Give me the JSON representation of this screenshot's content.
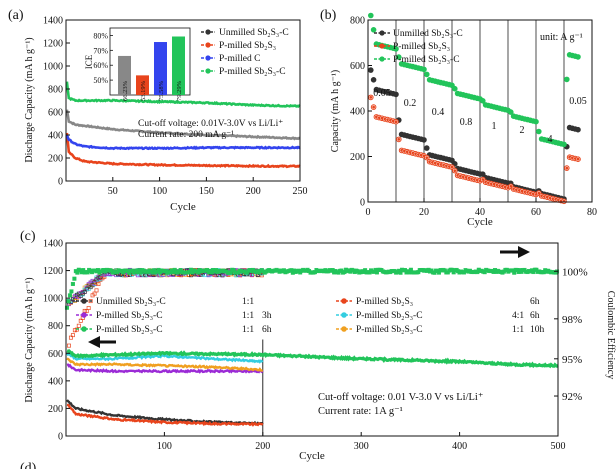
{
  "figure": {
    "panel_labels": [
      "(a)",
      "(b)",
      "(c)",
      "(d)"
    ],
    "panel_b_unit": "unit: A g⁻¹",
    "colors": {
      "unmilled": "#333333",
      "pmilled": "#e8441c",
      "pmilled_c": "#3344ee",
      "pmilled_sbc": "#22c45a",
      "purple": "#9b2bd6",
      "cyan": "#33cde0",
      "orange": "#f0a020",
      "gray": "#888888"
    }
  },
  "chart_data": [
    {
      "id": "a",
      "type": "line",
      "title": "",
      "xlabel": "Cycle",
      "ylabel": "Discharge Capacity (mA h g⁻¹)",
      "xlim": [
        0,
        250
      ],
      "ylim": [
        0,
        1400
      ],
      "xticks": [
        "50",
        "100",
        "150",
        "200",
        "250"
      ],
      "yticks": [
        "0",
        "200",
        "400",
        "600",
        "800",
        "1000",
        "1200",
        "1400"
      ],
      "legend": {
        "placement": "top-right",
        "entries": [
          "Unmilled Sb₂S₃-C",
          "P-milled Sb₂S₃",
          "P-milled C",
          "P-milled Sb₂S₃-C"
        ]
      },
      "annotations": [
        "Cut-off voltage: 0.01V-3.0V vs Li/Li⁺",
        "Current rate: 200 mA g⁻¹"
      ],
      "series": [
        {
          "name": "Unmilled Sb₂S₃-C",
          "x": [
            1,
            3,
            10,
            20,
            50,
            100,
            150,
            200,
            250
          ],
          "y": [
            620,
            520,
            490,
            480,
            450,
            420,
            400,
            385,
            370
          ]
        },
        {
          "name": "P-milled Sb₂S₃",
          "x": [
            1,
            3,
            10,
            20,
            50,
            100,
            150,
            200,
            250
          ],
          "y": [
            420,
            250,
            200,
            170,
            150,
            140,
            135,
            130,
            128
          ]
        },
        {
          "name": "P-milled C",
          "x": [
            1,
            3,
            10,
            20,
            50,
            100,
            150,
            200,
            250
          ],
          "y": [
            400,
            360,
            320,
            300,
            285,
            285,
            290,
            290,
            290
          ]
        },
        {
          "name": "P-milled Sb₂S₃-C",
          "x": [
            1,
            3,
            10,
            20,
            50,
            100,
            150,
            200,
            250
          ],
          "y": [
            860,
            720,
            700,
            700,
            700,
            690,
            680,
            660,
            650
          ]
        }
      ],
      "inset": {
        "type": "bar",
        "ylabel": "ICE",
        "yticks": [
          "50%",
          "60%",
          "70%",
          "80%"
        ],
        "ylim": [
          40,
          85
        ],
        "values": [
          66.23,
          53.19,
          75.58,
          79.29
        ],
        "labels": [
          "66.23%",
          "53.19%",
          "75.58%",
          "79.29%"
        ]
      }
    },
    {
      "id": "b",
      "type": "scatter",
      "title": "",
      "xlabel": "Cycle",
      "ylabel": "Capacity (mA h g⁻¹)",
      "xlim": [
        0,
        80
      ],
      "ylim": [
        0,
        800
      ],
      "xticks": [
        "0",
        "20",
        "40",
        "60",
        "80"
      ],
      "yticks": [
        "0",
        "200",
        "400",
        "600",
        "800"
      ],
      "legend": {
        "placement": "top-left",
        "entries": [
          "Unmilled Sb₂S₃-C",
          "P-milled Sb₂S₃",
          "P-milled Sb₂S₃-C"
        ]
      },
      "rate_labels": [
        "0.05",
        "0.2",
        "0.4",
        "0.8",
        "1",
        "2",
        "4",
        "0.05"
      ],
      "dividers": [
        10,
        20,
        30,
        40,
        50,
        60,
        70
      ],
      "series": [
        {
          "name": "Unmilled Sb₂S₃-C",
          "steps": [
            500,
            300,
            210,
            150,
            110,
            70,
            40,
            330
          ]
        },
        {
          "name": "P-milled Sb₂S₃",
          "steps": [
            380,
            230,
            180,
            120,
            90,
            60,
            30,
            200
          ]
        },
        {
          "name": "P-milled Sb₂S₃-C",
          "steps": [
            700,
            610,
            540,
            480,
            430,
            380,
            280,
            650
          ]
        }
      ]
    },
    {
      "id": "c",
      "type": "scatter",
      "title": "",
      "xlabel": "Cycle",
      "ylabel": "Discharge Capacity (mA h g⁻¹)",
      "y2label": "Coulombic Efficiency",
      "xlim": [
        0,
        500
      ],
      "ylim": [
        0,
        1400
      ],
      "xticks": [
        "100",
        "200",
        "300",
        "400",
        "500"
      ],
      "yticks": [
        "0",
        "200",
        "400",
        "600",
        "800",
        "1000",
        "1200",
        "1400"
      ],
      "y2ticks": [
        "100%",
        "98%",
        "95%",
        "92%"
      ],
      "legend": {
        "placement": "center",
        "entries": [
          [
            "Unmilled Sb₂S₃-C",
            "1:1",
            ""
          ],
          [
            "P-milled Sb₂S₃",
            "",
            "6h"
          ],
          [
            "P-milled Sb₂S₃-C",
            "1:1",
            "3h"
          ],
          [
            "P-milled Sb₂S₃-C",
            "4:1",
            "6h"
          ],
          [
            "P-milled Sb₂S₃-C",
            "1:1",
            "6h"
          ],
          [
            "P-milled Sb₂S₃-C",
            "1:1",
            "10h"
          ]
        ]
      },
      "annotations": [
        "Cut-off voltage: 0.01 V-3.0 V vs Li/Li⁺",
        "Current rate: 1A g⁻¹"
      ],
      "series": [
        {
          "name": "Unmilled 1:1",
          "x": [
            1,
            10,
            50,
            100,
            150,
            200
          ],
          "y": [
            260,
            200,
            150,
            120,
            100,
            90
          ]
        },
        {
          "name": "P-milled Sb₂S₃ 6h",
          "x": [
            1,
            10,
            50,
            100,
            150,
            200
          ],
          "y": [
            230,
            160,
            120,
            100,
            90,
            85
          ]
        },
        {
          "name": "1:1 3h",
          "x": [
            1,
            10,
            50,
            100,
            150,
            200
          ],
          "y": [
            520,
            480,
            470,
            470,
            470,
            470
          ]
        },
        {
          "name": "4:1 6h",
          "x": [
            1,
            10,
            50,
            100,
            150,
            200
          ],
          "y": [
            600,
            560,
            560,
            580,
            560,
            540
          ]
        },
        {
          "name": "1:1 6h",
          "x": [
            1,
            10,
            50,
            100,
            150,
            200,
            250,
            300,
            350,
            400,
            450,
            500
          ],
          "y": [
            620,
            580,
            590,
            600,
            595,
            590,
            575,
            560,
            550,
            540,
            520,
            510
          ]
        },
        {
          "name": "1:1 10h",
          "x": [
            1,
            10,
            50,
            100,
            150,
            200
          ],
          "y": [
            560,
            520,
            520,
            510,
            500,
            480
          ]
        }
      ]
    }
  ]
}
